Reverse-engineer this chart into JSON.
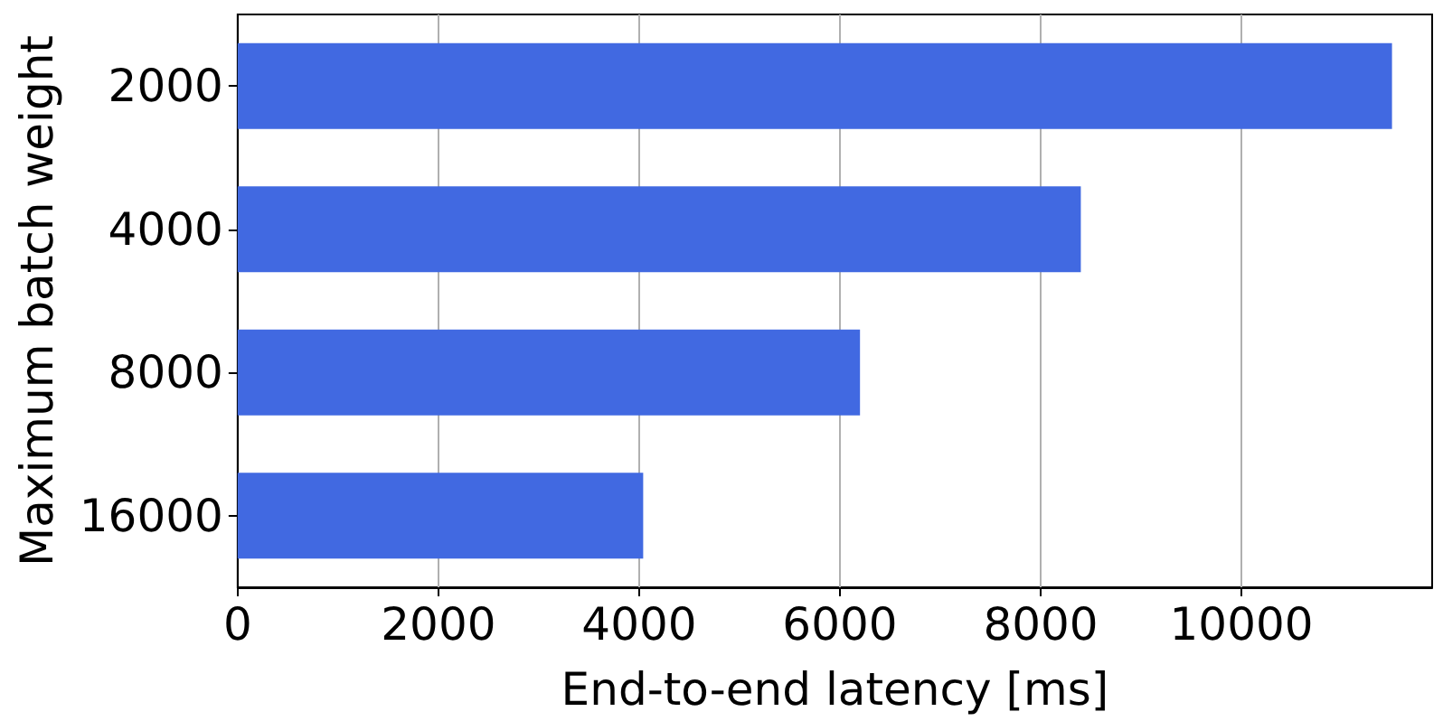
{
  "chart_data": {
    "type": "bar",
    "orientation": "horizontal",
    "xlabel": "End-to-end latency [ms]",
    "ylabel": "Maximum batch weight",
    "categories": [
      "2000",
      "4000",
      "8000",
      "16000"
    ],
    "values": [
      11500,
      8400,
      6200,
      4040
    ],
    "color": "#4169e1",
    "xlim": [
      0,
      11900
    ],
    "xticks": [
      0,
      2000,
      4000,
      6000,
      8000,
      10000
    ],
    "grid": "x"
  }
}
